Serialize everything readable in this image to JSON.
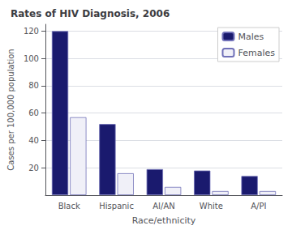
{
  "chart_data": {
    "type": "bar",
    "title": "Rates of HIV Diagnosis, 2006",
    "xlabel": "Race/ethnicity",
    "ylabel": "Cases per 100,000 population",
    "categories": [
      "Black",
      "Hispanic",
      "AI/AN",
      "White",
      "A/PI"
    ],
    "series": [
      {
        "name": "Males",
        "color": "#1a1a6e",
        "values": [
          120,
          52,
          19,
          18,
          14
        ]
      },
      {
        "name": "Females",
        "color": "#f0f0f8",
        "values": [
          57,
          16,
          6,
          3,
          3
        ]
      }
    ],
    "ylim": [
      0,
      125
    ],
    "yticks": [
      20,
      40,
      60,
      80,
      100,
      120
    ],
    "grid": true,
    "legend": "upper right"
  }
}
